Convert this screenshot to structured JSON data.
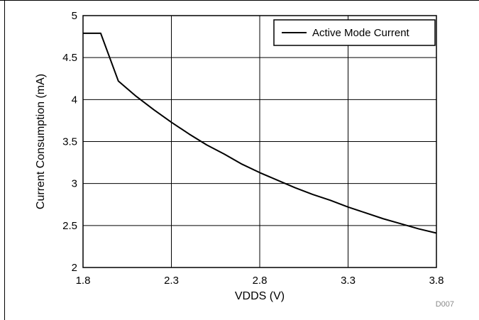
{
  "chart_data": {
    "type": "line",
    "xlabel": "VDDS (V)",
    "ylabel": "Current Consumption (mA)",
    "xlim": [
      1.8,
      3.8
    ],
    "ylim": [
      2,
      5
    ],
    "x_ticks": [
      1.8,
      2.3,
      2.8,
      3.3,
      3.8
    ],
    "x_tick_labels": [
      "1.8",
      "2.3",
      "2.8",
      "3.3",
      "3.8"
    ],
    "y_ticks": [
      2,
      2.5,
      3,
      3.5,
      4,
      4.5,
      5
    ],
    "y_tick_labels": [
      "2",
      "2.5",
      "3",
      "3.5",
      "4",
      "4.5",
      "5"
    ],
    "grid": true,
    "legend_position": "top-right",
    "series": [
      {
        "name": "Active Mode Current",
        "color": "#000000",
        "x": [
          1.8,
          1.9,
          2.0,
          2.1,
          2.2,
          2.3,
          2.4,
          2.5,
          2.6,
          2.7,
          2.8,
          2.9,
          3.0,
          3.1,
          3.2,
          3.3,
          3.4,
          3.5,
          3.6,
          3.7,
          3.8
        ],
        "y": [
          4.79,
          4.79,
          4.22,
          4.04,
          3.88,
          3.73,
          3.59,
          3.46,
          3.35,
          3.23,
          3.13,
          3.04,
          2.95,
          2.87,
          2.8,
          2.72,
          2.65,
          2.58,
          2.52,
          2.46,
          2.41
        ]
      }
    ]
  },
  "figure_code": "D007"
}
